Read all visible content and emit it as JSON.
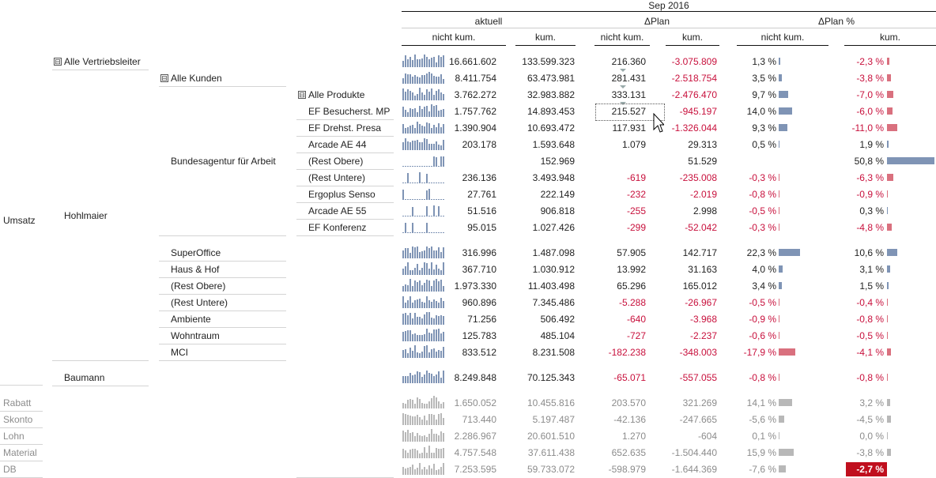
{
  "header": {
    "period": "Sep 2016",
    "groups": [
      "aktuell",
      "ΔPlan",
      "ΔPlan %"
    ],
    "sub": [
      "nicht kum.",
      "kum.",
      "nicht kum.",
      "kum.",
      "nicht kum.",
      "kum."
    ]
  },
  "colors": {
    "blue": "#7f94b5",
    "red": "#d9707e",
    "grey": "#b8b8b8",
    "neg_text": "#c8103c",
    "highlight": "#c00f1e"
  },
  "labels": {
    "umsatz": "Umsatz",
    "alle_vertriebsleiter": "Alle Vertriebsleiter",
    "hohlmaier": "Hohlmaier",
    "baumann": "Baumann",
    "alle_kunden": "Alle Kunden",
    "bundesagentur": "Bundesagentur für Arbeit",
    "alle_produkte": "Alle Produkte",
    "toggle": "⊟"
  },
  "rows": [
    {
      "label": "",
      "a_nk": "16.661.602",
      "a_k": "133.599.323",
      "d_nk": "216.360",
      "d_k": "-3.075.809",
      "p_nk": "1,3 %",
      "p_k": "-2,3 %",
      "pn": 1.3,
      "pk": -2.3
    },
    {
      "label": "",
      "a_nk": "8.411.754",
      "a_k": "63.473.981",
      "d_nk": "281.431",
      "d_k": "-2.518.754",
      "p_nk": "3,5 %",
      "p_k": "-3,8 %",
      "pn": 3.5,
      "pk": -3.8
    },
    {
      "label": "",
      "a_nk": "3.762.272",
      "a_k": "32.983.882",
      "d_nk": "333.131",
      "d_k": "-2.476.470",
      "p_nk": "9,7 %",
      "p_k": "-7,0 %",
      "pn": 9.7,
      "pk": -7.0
    },
    {
      "label": "EF Besucherst. MP",
      "a_nk": "1.757.762",
      "a_k": "14.893.453",
      "d_nk": "215.527",
      "d_k": "-945.197",
      "p_nk": "14,0 %",
      "p_k": "-6,0 %",
      "pn": 14.0,
      "pk": -6.0
    },
    {
      "label": "EF Drehst. Presa",
      "a_nk": "1.390.904",
      "a_k": "10.693.472",
      "d_nk": "117.931",
      "d_k": "-1.326.044",
      "p_nk": "9,3 %",
      "p_k": "-11,0 %",
      "pn": 9.3,
      "pk": -11.0
    },
    {
      "label": "Arcade AE 44",
      "a_nk": "203.178",
      "a_k": "1.593.648",
      "d_nk": "1.079",
      "d_k": "29.313",
      "p_nk": "0,5 %",
      "p_k": "1,9 %",
      "pn": 0.5,
      "pk": 1.9
    },
    {
      "label": "(Rest Obere)",
      "a_nk": "",
      "a_k": "152.969",
      "d_nk": "",
      "d_k": "51.529",
      "p_nk": "",
      "p_k": "50,8 %",
      "pn": 0,
      "pk": 50.8
    },
    {
      "label": "(Rest Untere)",
      "a_nk": "236.136",
      "a_k": "3.493.948",
      "d_nk": "-619",
      "d_k": "-235.008",
      "p_nk": "-0,3 %",
      "p_k": "-6,3 %",
      "pn": -0.3,
      "pk": -6.3
    },
    {
      "label": "Ergoplus Senso",
      "a_nk": "27.761",
      "a_k": "222.149",
      "d_nk": "-232",
      "d_k": "-2.019",
      "p_nk": "-0,8 %",
      "p_k": "-0,9 %",
      "pn": -0.8,
      "pk": -0.9
    },
    {
      "label": "Arcade AE 55",
      "a_nk": "51.516",
      "a_k": "906.818",
      "d_nk": "-255",
      "d_k": "2.998",
      "p_nk": "-0,5 %",
      "p_k": "0,3 %",
      "pn": -0.5,
      "pk": 0.3
    },
    {
      "label": "EF Konferenz",
      "a_nk": "95.015",
      "a_k": "1.027.426",
      "d_nk": "-299",
      "d_k": "-52.042",
      "p_nk": "-0,3 %",
      "p_k": "-4,8 %",
      "pn": -0.3,
      "pk": -4.8
    },
    {
      "label": "SuperOffice",
      "a_nk": "316.996",
      "a_k": "1.487.098",
      "d_nk": "57.905",
      "d_k": "142.717",
      "p_nk": "22,3 %",
      "p_k": "10,6 %",
      "pn": 22.3,
      "pk": 10.6
    },
    {
      "label": "Haus & Hof",
      "a_nk": "367.710",
      "a_k": "1.030.912",
      "d_nk": "13.992",
      "d_k": "31.163",
      "p_nk": "4,0 %",
      "p_k": "3,1 %",
      "pn": 4.0,
      "pk": 3.1
    },
    {
      "label": "(Rest Obere)",
      "a_nk": "1.973.330",
      "a_k": "11.403.498",
      "d_nk": "65.296",
      "d_k": "165.012",
      "p_nk": "3,4 %",
      "p_k": "1,5 %",
      "pn": 3.4,
      "pk": 1.5
    },
    {
      "label": "(Rest Untere)",
      "a_nk": "960.896",
      "a_k": "7.345.486",
      "d_nk": "-5.288",
      "d_k": "-26.967",
      "p_nk": "-0,5 %",
      "p_k": "-0,4 %",
      "pn": -0.5,
      "pk": -0.4
    },
    {
      "label": "Ambiente",
      "a_nk": "71.256",
      "a_k": "506.492",
      "d_nk": "-640",
      "d_k": "-3.968",
      "p_nk": "-0,9 %",
      "p_k": "-0,8 %",
      "pn": -0.9,
      "pk": -0.8
    },
    {
      "label": "Wohntraum",
      "a_nk": "125.783",
      "a_k": "485.104",
      "d_nk": "-727",
      "d_k": "-2.237",
      "p_nk": "-0,6 %",
      "p_k": "-0,5 %",
      "pn": -0.6,
      "pk": -0.5
    },
    {
      "label": "MCI",
      "a_nk": "833.512",
      "a_k": "8.231.508",
      "d_nk": "-182.238",
      "d_k": "-348.003",
      "p_nk": "-17,9 %",
      "p_k": "-4,1 %",
      "pn": -17.9,
      "pk": -4.1
    },
    {
      "label": "",
      "a_nk": "8.249.848",
      "a_k": "70.125.343",
      "d_nk": "-65.071",
      "d_k": "-557.055",
      "p_nk": "-0,8 %",
      "p_k": "-0,8 %",
      "pn": -0.8,
      "pk": -0.8
    },
    {
      "label": "Rabatt",
      "a_nk": "1.650.052",
      "a_k": "10.455.816",
      "d_nk": "203.570",
      "d_k": "321.269",
      "p_nk": "14,1 %",
      "p_k": "3,2 %",
      "pn": 14.1,
      "pk": 3.2
    },
    {
      "label": "Skonto",
      "a_nk": "713.440",
      "a_k": "5.197.487",
      "d_nk": "-42.136",
      "d_k": "-247.665",
      "p_nk": "-5,6 %",
      "p_k": "-4,5 %",
      "pn": -5.6,
      "pk": -4.5
    },
    {
      "label": "Lohn",
      "a_nk": "2.286.967",
      "a_k": "20.601.510",
      "d_nk": "1.270",
      "d_k": "-604",
      "p_nk": "0,1 %",
      "p_k": "0,0 %",
      "pn": 0.1,
      "pk": 0.0
    },
    {
      "label": "Material",
      "a_nk": "4.757.548",
      "a_k": "37.611.438",
      "d_nk": "652.635",
      "d_k": "-1.504.440",
      "p_nk": "15,9 %",
      "p_k": "-3,8 %",
      "pn": 15.9,
      "pk": -3.8
    },
    {
      "label": "DB",
      "a_nk": "7.253.595",
      "a_k": "59.733.072",
      "d_nk": "-598.979",
      "d_k": "-1.644.369",
      "p_nk": "-7,6 %",
      "p_k": "-2,7 %",
      "pn": -7.6,
      "pk": -2.7
    }
  ]
}
